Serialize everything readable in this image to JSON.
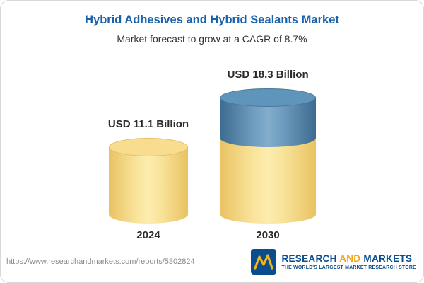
{
  "header": {
    "title": "Hybrid Adhesives and Hybrid Sealants Market",
    "subtitle": "Market forecast to grow at a CAGR of 8.7%"
  },
  "chart_data": {
    "type": "bar",
    "categories": [
      "2024",
      "2030"
    ],
    "values": [
      11.1,
      18.3
    ],
    "value_labels": [
      "USD 11.1 Billion",
      "USD 18.3 Billion"
    ],
    "title": "Hybrid Adhesives and Hybrid Sealants Market",
    "subtitle": "Market forecast to grow at a CAGR of 8.7%",
    "unit": "USD Billion",
    "cagr": "8.7%",
    "ylim": [
      0,
      20
    ],
    "grid": false,
    "legend": false,
    "colors": {
      "base_segment": "#f5d576",
      "growth_segment": "#4d82ab",
      "title": "#1a61ab"
    }
  },
  "footer": {
    "url": "https://www.researchandmarkets.com/reports/5302824",
    "logo": {
      "word1": "RESEARCH",
      "word2": "AND",
      "word3": "MARKETS",
      "tagline": "THE WORLD'S LARGEST MARKET RESEARCH STORE"
    }
  }
}
